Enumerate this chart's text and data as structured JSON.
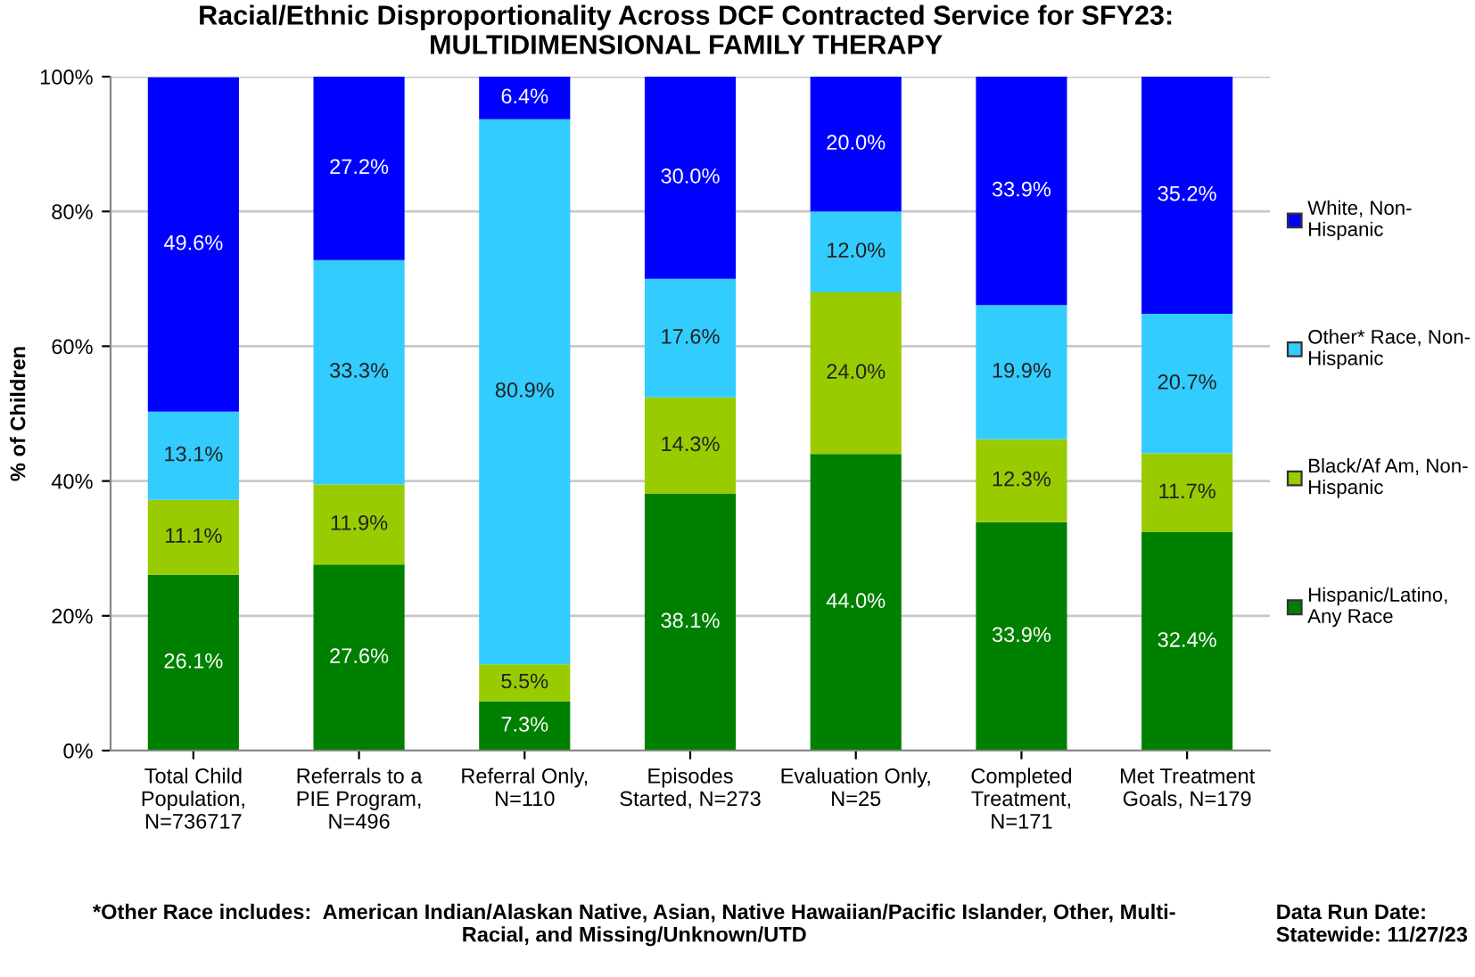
{
  "chart_data": {
    "type": "bar",
    "stacked": true,
    "title": "Racial/Ethnic Disproportionality Across DCF Contracted Service for SFY23:\nMULTIDIMENSIONAL FAMILY THERAPY",
    "ylabel": "% of Children",
    "categories": [
      "Total Child\nPopulation,\nN=736717",
      "Referrals to a\nPIE Program,\nN=496",
      "Referral Only,\nN=110",
      "Episodes\nStarted, N=273",
      "Evaluation Only,\nN=25",
      "Completed\nTreatment,\nN=171",
      "Met Treatment\nGoals, N=179"
    ],
    "series": [
      {
        "name": "Hispanic/Latino,\nAny Race",
        "color": "#008000",
        "values": [
          26.1,
          27.6,
          7.3,
          38.1,
          44.0,
          33.9,
          32.4
        ]
      },
      {
        "name": "Black/Af Am, Non-\nHispanic",
        "color": "#99cc00",
        "values": [
          11.1,
          11.9,
          5.5,
          14.3,
          24.0,
          12.3,
          11.7
        ]
      },
      {
        "name": "Other* Race, Non-\nHispanic",
        "color": "#33ccff",
        "values": [
          13.1,
          33.3,
          80.9,
          17.6,
          12.0,
          19.9,
          20.7
        ]
      },
      {
        "name": "White, Non-\nHispanic",
        "color": "#0000ff",
        "values": [
          49.6,
          27.2,
          6.4,
          30.0,
          20.0,
          33.9,
          35.2
        ]
      }
    ],
    "value_labels": [
      [
        "26.1%",
        "27.6%",
        "7.3%",
        "38.1%",
        "44.0%",
        "33.9%",
        "32.4%"
      ],
      [
        "11.1%",
        "11.9%",
        "5.5%",
        "14.3%",
        "24.0%",
        "12.3%",
        "11.7%"
      ],
      [
        "13.1%",
        "33.3%",
        "80.9%",
        "17.6%",
        "12.0%",
        "19.9%",
        "20.7%"
      ],
      [
        "49.6%",
        "27.2%",
        "6.4%",
        "30.0%",
        "20.0%",
        "33.9%",
        "35.2%"
      ]
    ],
    "ylim": [
      0,
      100
    ],
    "yticks": [
      {
        "value": 0,
        "label": "0%"
      },
      {
        "value": 20,
        "label": "20%"
      },
      {
        "value": 40,
        "label": "40%"
      },
      {
        "value": 60,
        "label": "60%"
      },
      {
        "value": 80,
        "label": "80%"
      },
      {
        "value": 100,
        "label": "100%"
      }
    ],
    "grid": "y",
    "legend": "right",
    "annotations": [
      "*Other Race includes:  American Indian/Alaskan Native, Asian, Native Hawaiian/Pacific Islander, Other, Multi-\nRacial, and Missing/Unknown/UTD",
      "Data Run Date:\nStatewide: 11/27/23"
    ]
  }
}
